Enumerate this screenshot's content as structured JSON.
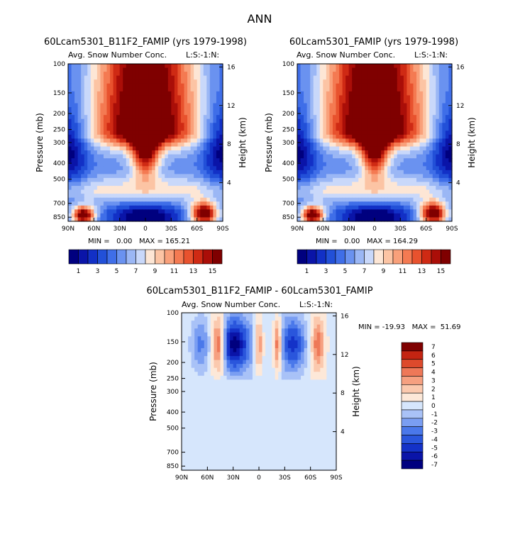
{
  "page_title": "ANN",
  "colors": {
    "abs_levels": [
      "#00007f",
      "#0a14a8",
      "#1230c6",
      "#2250d8",
      "#3f6ee8",
      "#6a92f0",
      "#9bb7f5",
      "#c9d8fa",
      "#fde6d5",
      "#fcc4a4",
      "#f9a07a",
      "#f47a52",
      "#e8522e",
      "#cf2a14",
      "#aa0e08",
      "#7f0000"
    ],
    "diff_levels": [
      "#00007f",
      "#0a14a8",
      "#1432c8",
      "#2a56dc",
      "#4a78ea",
      "#7a9ef2",
      "#a9c2f7",
      "#d6e6fc",
      "#fde8d8",
      "#fbc9ae",
      "#f6a080",
      "#ee7858",
      "#dd4a2c",
      "#c42412",
      "#7f0000"
    ]
  },
  "panels": [
    {
      "title": "60Lcam5301_B11F2_FAMIP (yrs 1979-1998)",
      "variable": "Avg. Snow Number Conc.",
      "tag": "L:S:-1:N:",
      "stats": "MIN =   0.00   MAX = 165.21"
    },
    {
      "title": "60Lcam5301_FAMIP (yrs 1979-1998)",
      "variable": "Avg. Snow Number Conc.",
      "tag": "L:S:-1:N:",
      "stats": "MIN =   0.00   MAX = 164.29"
    },
    {
      "title": "60Lcam5301_B11F2_FAMIP - 60Lcam5301_FAMIP",
      "variable": "Avg. Snow Number Conc.",
      "tag": "L:S:-1:N:",
      "stats": "MIN = -19.93   MAX =  51.69"
    }
  ],
  "chart_data": [
    {
      "type": "heatmap",
      "title": "60Lcam5301_B11F2_FAMIP (yrs 1979-1998)",
      "subtitle": "Avg. Snow Number Conc.",
      "xlabel": "",
      "ylabel": "Pressure (mb)",
      "ylabel_right": "Height (km)",
      "x_ticks": [
        "90N",
        "60N",
        "30N",
        "0",
        "30S",
        "60S",
        "90S"
      ],
      "y_ticks": [
        "100",
        "150",
        "200",
        "250",
        "300",
        "400",
        "500",
        "700",
        "850"
      ],
      "y_right_ticks": [
        "16",
        "12",
        "8",
        "4"
      ],
      "y_scale": "log",
      "ylim": [
        100,
        900
      ],
      "xlim": [
        90,
        -90
      ],
      "min": 0.0,
      "max": 165.21,
      "colorbar_labels": [
        "1",
        "3",
        "5",
        "7",
        "9",
        "11",
        "13",
        "15"
      ]
    },
    {
      "type": "heatmap",
      "title": "60Lcam5301_FAMIP (yrs 1979-1998)",
      "subtitle": "Avg. Snow Number Conc.",
      "xlabel": "",
      "ylabel": "Pressure (mb)",
      "ylabel_right": "Height (km)",
      "x_ticks": [
        "90N",
        "60N",
        "30N",
        "0",
        "30S",
        "60S",
        "90S"
      ],
      "y_ticks": [
        "100",
        "150",
        "200",
        "250",
        "300",
        "400",
        "500",
        "700",
        "850"
      ],
      "y_right_ticks": [
        "16",
        "12",
        "8",
        "4"
      ],
      "y_scale": "log",
      "ylim": [
        100,
        900
      ],
      "xlim": [
        90,
        -90
      ],
      "min": 0.0,
      "max": 164.29,
      "colorbar_labels": [
        "1",
        "3",
        "5",
        "7",
        "9",
        "11",
        "13",
        "15"
      ]
    },
    {
      "type": "heatmap",
      "title": "60Lcam5301_B11F2_FAMIP - 60Lcam5301_FAMIP",
      "subtitle": "Avg. Snow Number Conc.",
      "xlabel": "",
      "ylabel": "Pressure (mb)",
      "ylabel_right": "Height (km)",
      "x_ticks": [
        "90N",
        "60N",
        "30N",
        "0",
        "30S",
        "60S",
        "90S"
      ],
      "y_ticks": [
        "100",
        "150",
        "200",
        "250",
        "300",
        "400",
        "500",
        "700",
        "850"
      ],
      "y_right_ticks": [
        "16",
        "12",
        "8",
        "4"
      ],
      "y_scale": "log",
      "ylim": [
        100,
        900
      ],
      "xlim": [
        90,
        -90
      ],
      "min": -19.93,
      "max": 51.69,
      "colorbar_labels": [
        "7",
        "6",
        "5",
        "4",
        "3",
        "2",
        "1",
        "0",
        "-1",
        "-2",
        "-3",
        "-4",
        "-5",
        "-6",
        "-7"
      ]
    }
  ]
}
